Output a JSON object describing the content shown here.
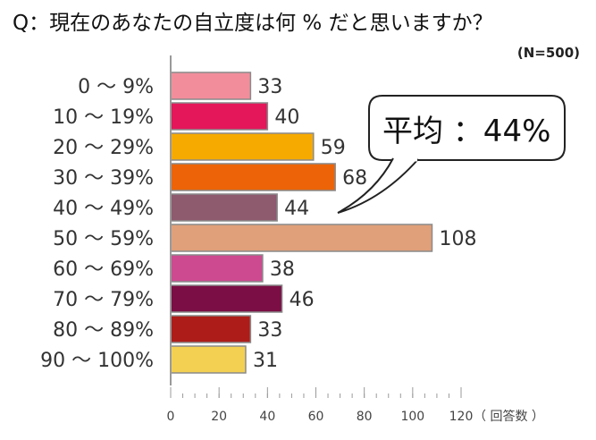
{
  "title": "Q：現在のあなたの自立度は何 % だと思いますか？",
  "sample_note": "(N=500)",
  "callout": "平均 ：44%",
  "x_unit_label": "（ 回答数 ）",
  "colors": {
    "bars": [
      "#f28e9b",
      "#e3175a",
      "#f6aa00",
      "#ec6407",
      "#8e5a6e",
      "#e0a07a",
      "#cd4a90",
      "#7b0e45",
      "#ad1c19",
      "#f3d051"
    ],
    "axis": "#9a9a9a",
    "bar_border": "#8a8a8a"
  },
  "chart_data": {
    "type": "bar",
    "orientation": "horizontal",
    "categories": [
      "0 ～  9%",
      "10 ～ 19%",
      "20 ～ 29%",
      "30 ～ 39%",
      "40 ～ 49%",
      "50 ～ 59%",
      "60 ～ 69%",
      "70 ～ 79%",
      "80 ～ 89%",
      "90 ～ 100%"
    ],
    "values": [
      33,
      40,
      59,
      68,
      44,
      108,
      38,
      46,
      33,
      31
    ],
    "xlim": [
      0,
      120
    ],
    "xticks": [
      0,
      20,
      40,
      60,
      80,
      100,
      120
    ],
    "grid": false
  }
}
